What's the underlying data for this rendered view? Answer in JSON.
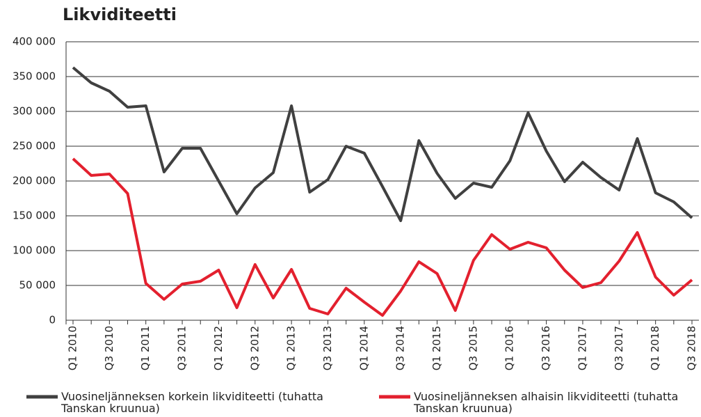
{
  "chart_data": {
    "type": "line",
    "title": "Likviditeetti",
    "categories": [
      "Q1 2010",
      null,
      "Q3 2010",
      null,
      "Q1 2011",
      null,
      "Q3 2011",
      null,
      "Q1 2012",
      null,
      "Q3 2012",
      null,
      "Q1 2013",
      null,
      "Q3 2013",
      null,
      "Q1 2014",
      null,
      "Q3 2014",
      null,
      "Q1 2015",
      null,
      "Q3 2015",
      null,
      "Q1 2016",
      null,
      "Q3 2016",
      null,
      "Q1 2017",
      null,
      "Q3 2017",
      null,
      "Q1 2018",
      null,
      "Q3 2018"
    ],
    "series": [
      {
        "name": "Vuosineljänneksen korkein likviditeetti (tuhatta Tanskan kruunua)",
        "color": "#404040",
        "values": [
          363000,
          341000,
          329000,
          306000,
          308000,
          213000,
          247000,
          247000,
          200000,
          153000,
          190000,
          212000,
          308000,
          184000,
          202000,
          250000,
          240000,
          192000,
          143000,
          258000,
          211000,
          175000,
          197000,
          191000,
          229000,
          298000,
          243000,
          199000,
          227000,
          205000,
          187000,
          261000,
          183000,
          170000,
          147000
        ]
      },
      {
        "name": "Vuosineljänneksen alhaisin likviditeetti (tuhatta Tanskan kruunua)",
        "color": "#e3202e",
        "values": [
          232000,
          208000,
          210000,
          182000,
          53000,
          30000,
          52000,
          56000,
          72000,
          18000,
          80000,
          32000,
          73000,
          17000,
          9000,
          46000,
          26000,
          7000,
          42000,
          84000,
          67000,
          14000,
          86000,
          123000,
          102000,
          112000,
          104000,
          72000,
          47000,
          54000,
          85000,
          126000,
          62000,
          36000,
          58000
        ]
      }
    ],
    "ylim": [
      0,
      400000
    ],
    "yticks": [
      0,
      {
        "value": 50000,
        "label": "50 000"
      },
      {
        "value": 100000,
        "label": "100 000"
      },
      {
        "value": 150000,
        "label": "150 000"
      },
      {
        "value": 200000,
        "label": "200 000"
      },
      {
        "value": 250000,
        "label": "250 000"
      },
      {
        "value": 300000,
        "label": "300 000"
      },
      {
        "value": 350000,
        "label": "350 000"
      },
      {
        "value": 400000,
        "label": "400 000"
      }
    ],
    "grid": true
  }
}
